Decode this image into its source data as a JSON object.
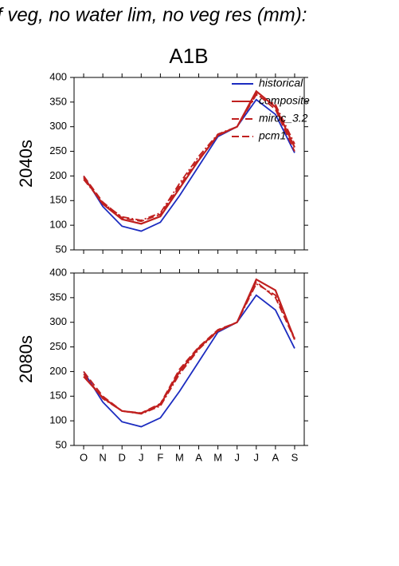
{
  "page_title": "f veg, no water lim, no veg res (mm):",
  "scenario": "A1B",
  "chart_data": [
    {
      "type": "line",
      "ylabel": "2040s",
      "categories": [
        null,
        null,
        null,
        null,
        null,
        null,
        null,
        null,
        null,
        null,
        null,
        null
      ],
      "ylim": [
        50,
        400
      ],
      "yticks": [
        50,
        100,
        150,
        200,
        250,
        300,
        350,
        400
      ],
      "legend": "upper right",
      "series": [
        {
          "name": "historical",
          "color": "#1c2cc0",
          "dash": "solid",
          "values": [
            200,
            138,
            98,
            88,
            106,
            160,
            220,
            280,
            300,
            355,
            325,
            247
          ]
        },
        {
          "name": "composite",
          "color": "#c0201f",
          "dash": "solid",
          "values": [
            197,
            143,
            112,
            103,
            118,
            175,
            232,
            283,
            300,
            372,
            340,
            258
          ]
        },
        {
          "name": "miroc_3.2",
          "color": "#c0201f",
          "dash": "dashdot",
          "values": [
            193,
            145,
            117,
            110,
            125,
            185,
            240,
            285,
            300,
            365,
            345,
            265
          ]
        },
        {
          "name": "pcm1",
          "color": "#c0201f",
          "dash": "dashed",
          "values": [
            200,
            147,
            115,
            108,
            122,
            180,
            235,
            282,
            300,
            368,
            335,
            250
          ]
        }
      ]
    },
    {
      "type": "line",
      "ylabel": "2080s",
      "categories": [
        "O",
        "N",
        "D",
        "J",
        "F",
        "M",
        "A",
        "M",
        "J",
        "J",
        "A",
        "S"
      ],
      "ylim": [
        50,
        400
      ],
      "yticks": [
        50,
        100,
        150,
        200,
        250,
        300,
        350,
        400
      ],
      "series": [
        {
          "color": "#1c2cc0",
          "dash": "solid",
          "values": [
            200,
            138,
            98,
            88,
            106,
            160,
            220,
            280,
            300,
            355,
            325,
            247
          ]
        },
        {
          "color": "#c0201f",
          "dash": "solid",
          "values": [
            190,
            147,
            120,
            115,
            133,
            200,
            248,
            283,
            300,
            387,
            365,
            265
          ]
        },
        {
          "color": "#c0201f",
          "dash": "dashdot",
          "values": [
            195,
            145,
            120,
            114,
            130,
            195,
            245,
            282,
            300,
            378,
            355,
            268
          ]
        },
        {
          "color": "#c0201f",
          "dash": "dashed",
          "values": [
            200,
            150,
            120,
            116,
            135,
            205,
            250,
            285,
            300,
            382,
            350,
            265
          ]
        }
      ]
    }
  ]
}
